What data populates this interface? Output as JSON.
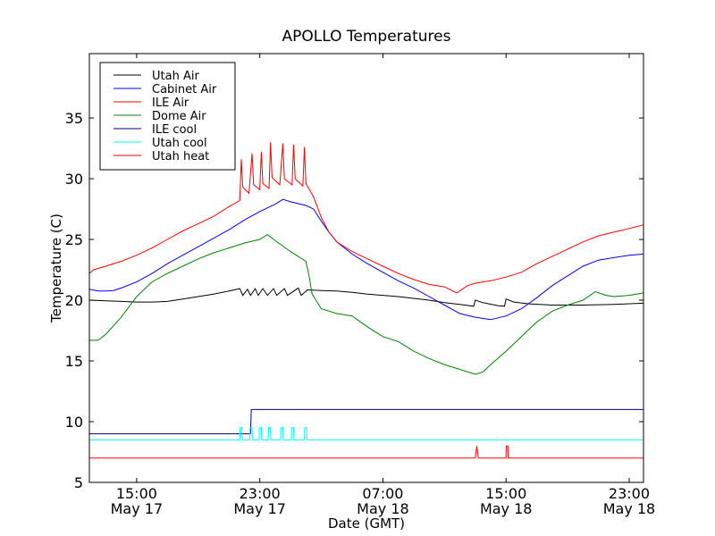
{
  "chart_data": {
    "type": "line",
    "title": "APOLLO Temperatures",
    "xlabel": "Date (GMT)",
    "ylabel": "Temperature (C)",
    "x_units": "hours since May 17 00:00 GMT",
    "xlim": [
      11.93,
      47.93
    ],
    "ylim": [
      5,
      40.3
    ],
    "grid": false,
    "legend_position": "top-left",
    "x_ticks": [
      {
        "value": 15,
        "time": "15:00",
        "date": "May 17"
      },
      {
        "value": 23,
        "time": "23:00",
        "date": "May 17"
      },
      {
        "value": 31,
        "time": "07:00",
        "date": "May 18"
      },
      {
        "value": 39,
        "time": "15:00",
        "date": "May 18"
      },
      {
        "value": 47,
        "time": "23:00",
        "date": "May 18"
      }
    ],
    "y_ticks": [
      5,
      10,
      15,
      20,
      25,
      30,
      35
    ],
    "series": [
      {
        "name": "Utah Air",
        "color": "#000000",
        "points": [
          [
            11.93,
            20.0
          ],
          [
            13,
            19.95
          ],
          [
            14,
            19.9
          ],
          [
            15,
            19.85
          ],
          [
            16,
            19.85
          ],
          [
            17,
            19.9
          ],
          [
            18,
            20.1
          ],
          [
            19,
            20.3
          ],
          [
            20,
            20.5
          ],
          [
            21,
            20.75
          ],
          [
            21.7,
            20.95
          ],
          [
            21.9,
            20.4
          ],
          [
            22.2,
            20.9
          ],
          [
            22.4,
            20.4
          ],
          [
            22.7,
            20.95
          ],
          [
            22.9,
            20.4
          ],
          [
            23.2,
            20.95
          ],
          [
            23.5,
            20.4
          ],
          [
            23.9,
            20.95
          ],
          [
            24.1,
            20.4
          ],
          [
            24.6,
            20.95
          ],
          [
            24.8,
            20.4
          ],
          [
            25.5,
            21.0
          ],
          [
            25.7,
            20.4
          ],
          [
            26.1,
            20.85
          ],
          [
            27,
            20.8
          ],
          [
            28,
            20.75
          ],
          [
            29,
            20.65
          ],
          [
            30,
            20.5
          ],
          [
            31,
            20.4
          ],
          [
            32,
            20.3
          ],
          [
            33,
            20.15
          ],
          [
            34,
            20.0
          ],
          [
            35,
            19.8
          ],
          [
            36,
            19.65
          ],
          [
            36.9,
            19.5
          ],
          [
            37.0,
            20.0
          ],
          [
            37.5,
            19.8
          ],
          [
            38.5,
            19.55
          ],
          [
            38.9,
            19.5
          ],
          [
            39.0,
            20.1
          ],
          [
            39.5,
            19.85
          ],
          [
            40.5,
            19.7
          ],
          [
            42,
            19.6
          ],
          [
            44,
            19.6
          ],
          [
            46,
            19.65
          ],
          [
            47.93,
            19.75
          ]
        ]
      },
      {
        "name": "Cabinet Air",
        "color": "#0000ff",
        "points": [
          [
            11.93,
            20.9
          ],
          [
            12.5,
            20.75
          ],
          [
            13,
            20.75
          ],
          [
            13.5,
            20.8
          ],
          [
            14,
            21.0
          ],
          [
            15,
            21.5
          ],
          [
            16,
            22.2
          ],
          [
            17,
            23.0
          ],
          [
            18,
            23.7
          ],
          [
            19,
            24.4
          ],
          [
            20,
            25.1
          ],
          [
            21,
            25.8
          ],
          [
            22,
            26.6
          ],
          [
            23,
            27.3
          ],
          [
            24,
            27.9
          ],
          [
            24.5,
            28.3
          ],
          [
            25,
            28.1
          ],
          [
            26,
            27.8
          ],
          [
            26.5,
            27.5
          ],
          [
            27,
            26.5
          ],
          [
            27.5,
            25.6
          ],
          [
            28,
            24.8
          ],
          [
            28.5,
            24.3
          ],
          [
            29,
            23.8
          ],
          [
            30,
            23.0
          ],
          [
            31,
            22.3
          ],
          [
            32,
            21.6
          ],
          [
            33,
            21.0
          ],
          [
            34,
            20.3
          ],
          [
            35,
            19.6
          ],
          [
            36,
            18.9
          ],
          [
            37,
            18.6
          ],
          [
            38,
            18.4
          ],
          [
            39,
            18.7
          ],
          [
            40,
            19.3
          ],
          [
            41,
            20.2
          ],
          [
            42,
            21.2
          ],
          [
            43,
            22.0
          ],
          [
            44,
            22.8
          ],
          [
            45,
            23.3
          ],
          [
            46,
            23.5
          ],
          [
            47,
            23.7
          ],
          [
            47.93,
            23.8
          ]
        ]
      },
      {
        "name": "ILE Air",
        "color": "#ff0000",
        "points": [
          [
            11.93,
            22.2
          ],
          [
            12.2,
            22.5
          ],
          [
            13,
            22.8
          ],
          [
            14,
            23.2
          ],
          [
            15,
            23.7
          ],
          [
            16,
            24.3
          ],
          [
            17,
            25.0
          ],
          [
            18,
            25.7
          ],
          [
            19,
            26.3
          ],
          [
            20,
            26.9
          ],
          [
            21,
            27.7
          ],
          [
            21.7,
            28.2
          ],
          [
            21.8,
            31.6
          ],
          [
            21.9,
            29.3
          ],
          [
            22.3,
            28.8
          ],
          [
            22.5,
            32.1
          ],
          [
            22.6,
            29.5
          ],
          [
            23.0,
            29.1
          ],
          [
            23.1,
            32.2
          ],
          [
            23.2,
            29.6
          ],
          [
            23.6,
            29.2
          ],
          [
            23.7,
            33.0
          ],
          [
            23.8,
            30.1
          ],
          [
            24.3,
            29.5
          ],
          [
            24.5,
            32.9
          ],
          [
            24.6,
            30.0
          ],
          [
            25.1,
            29.5
          ],
          [
            25.2,
            32.8
          ],
          [
            25.3,
            30.0
          ],
          [
            25.8,
            29.4
          ],
          [
            25.9,
            32.6
          ],
          [
            26.0,
            29.6
          ],
          [
            26.5,
            28.5
          ],
          [
            27,
            26.8
          ],
          [
            27.5,
            25.6
          ],
          [
            28,
            24.8
          ],
          [
            29,
            24.0
          ],
          [
            30,
            23.4
          ],
          [
            31,
            22.8
          ],
          [
            32,
            22.2
          ],
          [
            33,
            21.7
          ],
          [
            34,
            21.3
          ],
          [
            35,
            21.1
          ],
          [
            35.8,
            20.6
          ],
          [
            36.5,
            21.2
          ],
          [
            37,
            21.4
          ],
          [
            38,
            21.6
          ],
          [
            39,
            21.9
          ],
          [
            40,
            22.3
          ],
          [
            41,
            23.0
          ],
          [
            42,
            23.6
          ],
          [
            43,
            24.2
          ],
          [
            44,
            24.8
          ],
          [
            45,
            25.3
          ],
          [
            46,
            25.6
          ],
          [
            47,
            25.9
          ],
          [
            47.93,
            26.2
          ]
        ]
      },
      {
        "name": "Dome Air",
        "color": "#008000",
        "points": [
          [
            11.93,
            16.7
          ],
          [
            12.5,
            16.7
          ],
          [
            13,
            17.2
          ],
          [
            14,
            18.6
          ],
          [
            15,
            20.3
          ],
          [
            16,
            21.5
          ],
          [
            17,
            22.2
          ],
          [
            18,
            22.8
          ],
          [
            19,
            23.4
          ],
          [
            20,
            23.9
          ],
          [
            21,
            24.3
          ],
          [
            22,
            24.7
          ],
          [
            23,
            25.0
          ],
          [
            23.5,
            25.4
          ],
          [
            24,
            24.9
          ],
          [
            25,
            24.0
          ],
          [
            26,
            23.2
          ],
          [
            26.2,
            22.0
          ],
          [
            26.4,
            20.5
          ],
          [
            27,
            19.3
          ],
          [
            28,
            18.9
          ],
          [
            29,
            18.7
          ],
          [
            30,
            17.8
          ],
          [
            31,
            17.0
          ],
          [
            32,
            16.6
          ],
          [
            33,
            15.8
          ],
          [
            34,
            15.2
          ],
          [
            35,
            14.7
          ],
          [
            36,
            14.3
          ],
          [
            37,
            13.9
          ],
          [
            37.5,
            14.1
          ],
          [
            38,
            14.7
          ],
          [
            39,
            15.8
          ],
          [
            40,
            17.0
          ],
          [
            41,
            18.2
          ],
          [
            42,
            19.1
          ],
          [
            43,
            19.6
          ],
          [
            44,
            20.0
          ],
          [
            44.8,
            20.7
          ],
          [
            45.5,
            20.4
          ],
          [
            46,
            20.3
          ],
          [
            47,
            20.4
          ],
          [
            47.93,
            20.6
          ]
        ]
      },
      {
        "name": "ILE cool",
        "color": "#000080",
        "points": [
          [
            11.93,
            9.0
          ],
          [
            22.4,
            9.0
          ],
          [
            22.45,
            11.0
          ],
          [
            47.93,
            11.0
          ]
        ]
      },
      {
        "name": "Utah cool",
        "color": "#00ffff",
        "points": [
          [
            11.93,
            8.5
          ],
          [
            21.7,
            8.5
          ],
          [
            21.72,
            9.5
          ],
          [
            21.85,
            9.5
          ],
          [
            21.87,
            8.5
          ],
          [
            22.35,
            8.5
          ],
          [
            22.37,
            9.5
          ],
          [
            22.5,
            9.5
          ],
          [
            22.52,
            8.5
          ],
          [
            22.95,
            8.5
          ],
          [
            22.97,
            9.5
          ],
          [
            23.1,
            9.5
          ],
          [
            23.12,
            8.5
          ],
          [
            23.55,
            8.5
          ],
          [
            23.57,
            9.5
          ],
          [
            23.7,
            9.5
          ],
          [
            23.72,
            8.5
          ],
          [
            24.35,
            8.5
          ],
          [
            24.37,
            9.5
          ],
          [
            24.5,
            9.5
          ],
          [
            24.52,
            8.5
          ],
          [
            25.05,
            8.5
          ],
          [
            25.07,
            9.5
          ],
          [
            25.2,
            9.5
          ],
          [
            25.22,
            8.5
          ],
          [
            25.9,
            8.5
          ],
          [
            25.92,
            9.5
          ],
          [
            26.05,
            9.5
          ],
          [
            26.07,
            8.5
          ],
          [
            47.93,
            8.5
          ]
        ]
      },
      {
        "name": "Utah heat",
        "color": "#ff0000",
        "points": [
          [
            11.93,
            7.0
          ],
          [
            37.0,
            7.0
          ],
          [
            37.1,
            8.0
          ],
          [
            37.2,
            7.0
          ],
          [
            39.0,
            7.0
          ],
          [
            39.02,
            8.0
          ],
          [
            39.12,
            8.0
          ],
          [
            39.14,
            7.0
          ],
          [
            47.93,
            7.0
          ]
        ]
      }
    ]
  }
}
